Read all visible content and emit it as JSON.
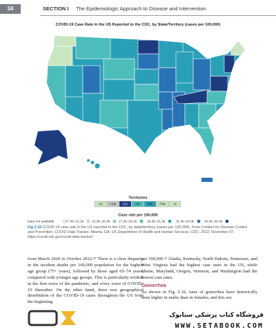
{
  "header": {
    "page_number": "34",
    "section": "SECTION I",
    "section_title": "The Epidemiologic Approach to Disease and Intervention"
  },
  "figure": {
    "title": "COVID-19 Case Rate in the US Reported to the CDC, by State/Territory (cases per 100,000)",
    "territories": {
      "title": "Territories",
      "items": [
        {
          "label": "AS",
          "color": "#c9e6c1"
        },
        {
          "label": "FSM",
          "color": "#c9c9c9"
        },
        {
          "label": "GU",
          "color": "#1d3c80"
        },
        {
          "label": "MP",
          "color": "#4dbdbc"
        },
        {
          "label": "PW",
          "color": "#2aa0b8"
        },
        {
          "label": "RMI",
          "color": "#c9e6c1"
        },
        {
          "label": "VI",
          "color": "#c9e6c1"
        }
      ]
    },
    "case_rate_legend": {
      "title": "Case rate per 100,000",
      "items": [
        {
          "label": "Data not available",
          "color": "#eeeeee"
        },
        {
          "label": "17.4k–22.2k",
          "color": "#c9e6c1"
        },
        {
          "label": "23.3k–26.3k",
          "color": "#8fd0bd"
        },
        {
          "label": "27.2k–29.1k",
          "color": "#4dbdbc"
        },
        {
          "label": "29.5k–31.3k",
          "color": "#2aa0b8"
        },
        {
          "label": "31.4k–34.0k",
          "color": "#2873b4"
        },
        {
          "label": "34.6k–39.4k",
          "color": "#1d3c80"
        }
      ]
    },
    "caption_label": "Fig 2.15",
    "caption": "COVID-19 case rate in the US reported to the CDC, by state/territory (cases per 100,000). From Centers for Disease Control and Prevention. COVID Data Tracker. Atlanta, GA: US Department of Health and Human Services, CDC; 2022, November 07. https://covid.cdc.gov/covid-data-tracker/"
  },
  "body": {
    "left_column": "from March 2020 to October 2022.²⁵ There is a clear disparity in the incident deaths per 100,000 population for the highest age group (75+ years), followed by those aged 65–74 years, compared with younger age groups. This is particularly evident in the first wave of the pandemic, and every wave of COVID-19 thereafter. On the other hand, there was geographical distribution of the COVID-19 cases throughout the US from the beginning",
    "right_column": "per 100,000.²² Alaska, Kentucky, North Dakota, Tennessee, and West Virginia had the highest case rates in the US, while Maine, Maryland, Oregon, Vermont, and Washington had the lowest case rates.",
    "heading": "Gonorrhea",
    "right_column_2": "As shown in Fig. 2.16, rates of gonorrhea have historically been higher in males than in females, and this sex"
  },
  "watermark": {
    "store_name": "فروشگاه کتاب پزشکی ستابوک",
    "url": "WWW.SETABOOK.COM"
  }
}
